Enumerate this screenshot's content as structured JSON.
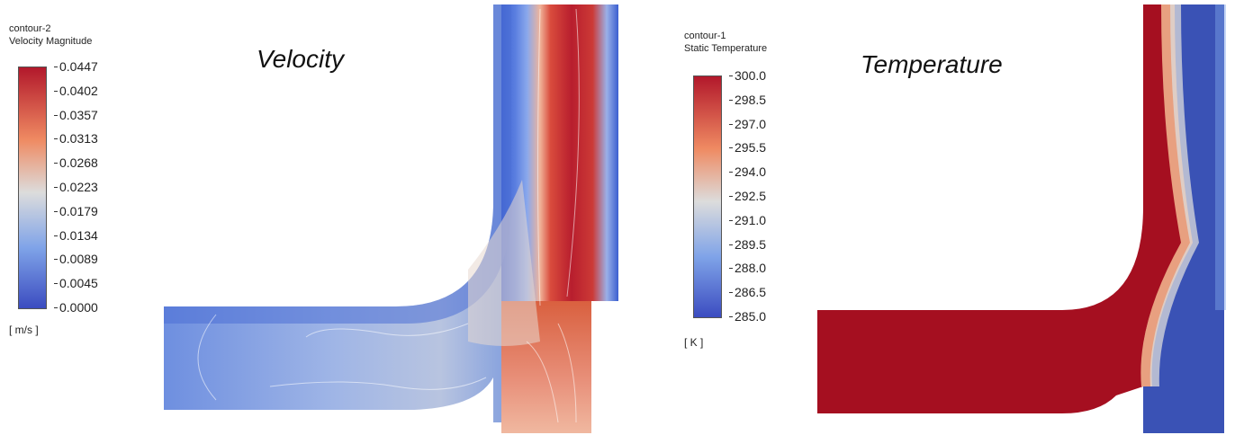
{
  "velocity_panel": {
    "contour_name": "contour-2",
    "quantity": "Velocity Magnitude",
    "plot_title": "Velocity",
    "units": "[ m/s ]",
    "ticks": [
      "0.0447",
      "0.0402",
      "0.0357",
      "0.0313",
      "0.0268",
      "0.0223",
      "0.0179",
      "0.0134",
      "0.0089",
      "0.0045",
      "0.0000"
    ]
  },
  "temperature_panel": {
    "contour_name": "contour-1",
    "quantity": "Static Temperature",
    "plot_title": "Temperature",
    "units": "[ K ]",
    "ticks": [
      "300.0",
      "298.5",
      "297.0",
      "295.5",
      "294.0",
      "292.5",
      "291.0",
      "289.5",
      "288.0",
      "286.5",
      "285.0"
    ]
  },
  "colors": {
    "high": "#b2182b",
    "mid_high": "#ef8a62",
    "mid": "#dcdcdc",
    "mid_low": "#7fa3e8",
    "low": "#3b4cc0",
    "hot": "#a50f20",
    "cold": "#3a52b5"
  }
}
